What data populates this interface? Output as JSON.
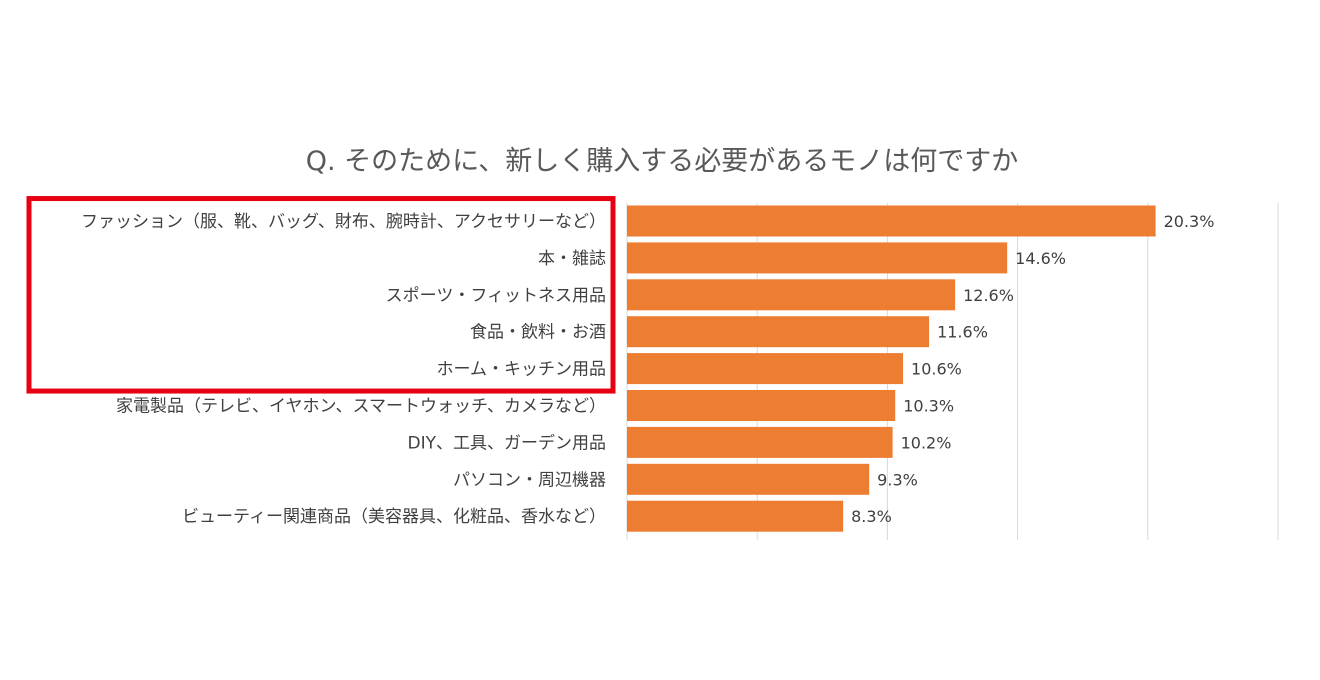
{
  "chart_data": {
    "type": "bar",
    "orientation": "horizontal",
    "title": "Q.  そのために、新しく購入する必要があるモノは何ですか",
    "categories": [
      "ファッション（服、靴、バッグ、財布、腕時計、アクセサリーなど）",
      "本・雑誌",
      "スポーツ・フィットネス用品",
      "食品・飲料・お酒",
      "ホーム・キッチン用品",
      "家電製品（テレビ、イヤホン、スマートウォッチ、カメラなど）",
      "DIY、工具、ガーデン用品",
      "パソコン・周辺機器",
      "ビューティー関連商品（美容器具、化粧品、香水など）"
    ],
    "values": [
      20.3,
      14.6,
      12.6,
      11.6,
      10.6,
      10.3,
      10.2,
      9.3,
      8.3
    ],
    "value_labels": [
      "20.3%",
      "14.6%",
      "12.6%",
      "11.6%",
      "10.6%",
      "10.3%",
      "10.2%",
      "9.3%",
      "8.3%"
    ],
    "xlim": [
      0,
      25
    ],
    "gridlines": [
      0,
      5,
      10,
      15,
      20,
      25
    ],
    "grid": true,
    "legend": false,
    "highlighted_categories": [
      0,
      1,
      2,
      3,
      4
    ]
  },
  "colors": {
    "bar": "#ed7d31",
    "highlight": "#e60012",
    "title": "#595959",
    "text": "#404040",
    "grid": "#d9d9d9"
  }
}
